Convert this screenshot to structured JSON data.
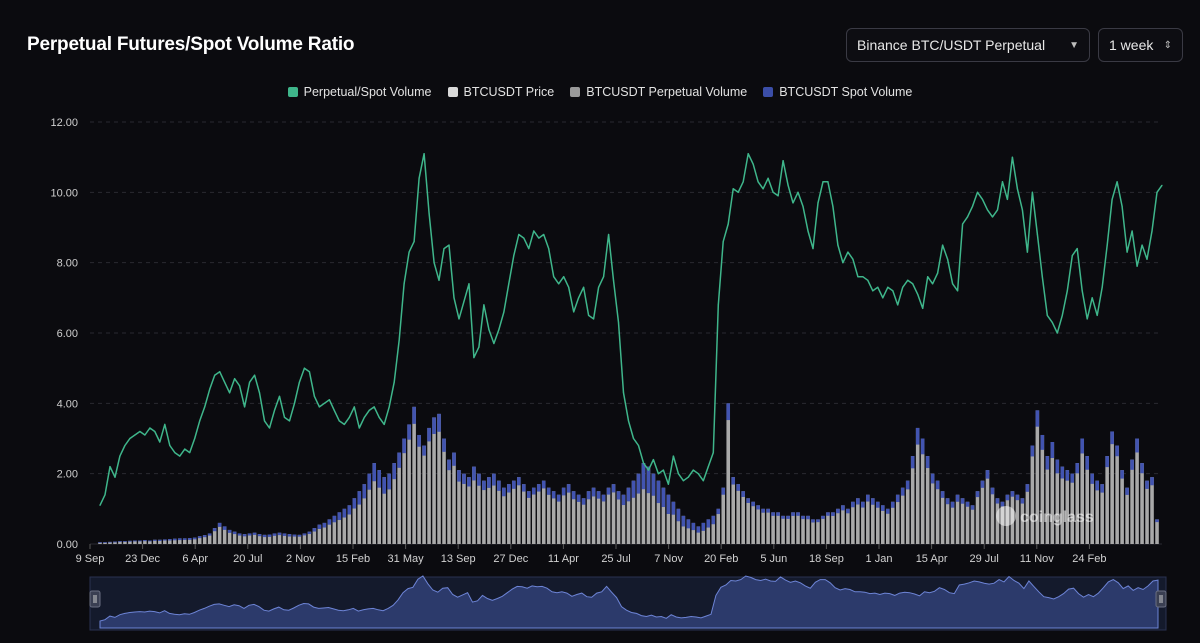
{
  "header": {
    "title": "Perpetual Futures/Spot Volume Ratio",
    "pair_select": "Binance BTC/USDT Perpetual",
    "period_select": "1 week"
  },
  "legend": [
    {
      "label": "Perpetual/Spot Volume",
      "color": "#3fb68b"
    },
    {
      "label": "BTCUSDT Price",
      "color": "#d9d9d9"
    },
    {
      "label": "BTCUSDT Perpetual Volume",
      "color": "#9a9a9a"
    },
    {
      "label": "BTCUSDT Spot Volume",
      "color": "#3b4ea8"
    }
  ],
  "watermark": "coinglass",
  "chart_data": {
    "type": "line",
    "title": "Perpetual Futures/Spot Volume Ratio",
    "ylim": [
      0,
      12
    ],
    "yticks": [
      "0.00",
      "2.00",
      "4.00",
      "6.00",
      "8.00",
      "10.00",
      "12.00"
    ],
    "xticks": [
      "9 Sep",
      "23 Dec",
      "6 Apr",
      "20 Jul",
      "2 Nov",
      "15 Feb",
      "31 May",
      "13 Sep",
      "27 Dec",
      "11 Apr",
      "25 Jul",
      "7 Nov",
      "20 Feb",
      "5 Jun",
      "18 Sep",
      "1 Jan",
      "15 Apr",
      "29 Jul",
      "11 Nov",
      "24 Feb"
    ],
    "series": [
      {
        "name": "Perpetual/Spot Volume",
        "values": [
          1.1,
          1.4,
          2.2,
          1.9,
          2.5,
          2.8,
          3.0,
          3.1,
          3.2,
          3.1,
          3.3,
          3.2,
          2.9,
          3.4,
          2.8,
          2.6,
          2.5,
          2.7,
          2.6,
          3.0,
          3.5,
          3.9,
          4.4,
          4.8,
          4.9,
          4.6,
          4.3,
          4.7,
          4.5,
          3.9,
          4.6,
          4.8,
          4.3,
          3.5,
          3.3,
          3.8,
          4.2,
          3.6,
          3.5,
          4.0,
          4.6,
          5.0,
          4.9,
          4.2,
          3.9,
          4.0,
          4.1,
          3.8,
          3.5,
          3.4,
          3.6,
          3.9,
          3.3,
          3.6,
          3.8,
          3.9,
          3.6,
          3.4,
          3.9,
          4.6,
          5.8,
          7.4,
          8.3,
          8.6,
          10.4,
          11.1,
          9.4,
          8.0,
          7.5,
          8.4,
          8.5,
          7.0,
          6.4,
          6.9,
          7.4,
          5.3,
          5.6,
          6.8,
          6.1,
          5.7,
          6.1,
          6.6,
          7.4,
          8.2,
          8.8,
          8.7,
          8.4,
          8.9,
          8.7,
          8.8,
          8.4,
          7.6,
          7.4,
          7.6,
          7.3,
          6.6,
          7.0,
          7.3,
          6.5,
          6.4,
          7.3,
          7.6,
          8.8,
          7.5,
          6.3,
          4.3,
          3.5,
          3.0,
          2.8,
          2.3,
          2.1,
          2.4,
          2.0,
          2.1,
          1.7,
          2.5,
          2.0,
          1.8,
          1.9,
          2.1,
          2.0,
          1.8,
          2.2,
          2.6,
          6.8,
          8.6,
          9.1,
          10.1,
          10.0,
          10.3,
          11.1,
          10.8,
          10.3,
          10.1,
          10.4,
          10.0,
          9.9,
          10.9,
          10.2,
          9.7,
          10.0,
          9.6,
          8.9,
          8.4,
          9.7,
          10.3,
          10.3,
          9.6,
          8.5,
          8.0,
          8.3,
          8.1,
          7.6,
          7.6,
          7.5,
          7.2,
          7.3,
          7.0,
          7.3,
          7.2,
          6.8,
          7.3,
          7.5,
          7.4,
          7.1,
          6.7,
          7.6,
          7.4,
          7.7,
          8.5,
          8.1,
          7.4,
          7.2,
          9.1,
          9.3,
          9.6,
          10.0,
          9.8,
          9.5,
          9.3,
          9.5,
          10.3,
          9.8,
          11.0,
          10.1,
          9.5,
          8.3,
          10.0,
          8.8,
          7.6,
          6.5,
          6.3,
          6.0,
          6.5,
          7.2,
          8.2,
          8.4,
          7.2,
          6.4,
          7.0,
          6.5,
          7.3,
          8.5,
          9.8,
          10.3,
          9.6,
          8.3,
          8.9,
          7.9,
          8.5,
          8.1,
          8.9,
          10.0,
          10.2
        ]
      },
      {
        "name": "BTCUSDT Spot Volume (stacked total)",
        "values": [
          0.05,
          0.05,
          0.06,
          0.07,
          0.08,
          0.08,
          0.09,
          0.1,
          0.1,
          0.11,
          0.1,
          0.12,
          0.12,
          0.13,
          0.14,
          0.15,
          0.16,
          0.16,
          0.17,
          0.18,
          0.22,
          0.25,
          0.3,
          0.45,
          0.6,
          0.5,
          0.4,
          0.35,
          0.3,
          0.28,
          0.3,
          0.32,
          0.28,
          0.26,
          0.27,
          0.3,
          0.32,
          0.3,
          0.28,
          0.27,
          0.26,
          0.3,
          0.35,
          0.45,
          0.55,
          0.6,
          0.7,
          0.8,
          0.9,
          1.0,
          1.1,
          1.3,
          1.5,
          1.7,
          2.0,
          2.3,
          2.1,
          1.9,
          2.0,
          2.3,
          2.6,
          3.0,
          3.4,
          3.9,
          3.1,
          2.8,
          3.3,
          3.6,
          3.7,
          3.0,
          2.4,
          2.6,
          2.1,
          2.0,
          1.9,
          2.2,
          2.0,
          1.8,
          1.9,
          2.0,
          1.8,
          1.6,
          1.7,
          1.8,
          1.9,
          1.7,
          1.5,
          1.6,
          1.7,
          1.8,
          1.6,
          1.5,
          1.4,
          1.6,
          1.7,
          1.5,
          1.4,
          1.3,
          1.5,
          1.6,
          1.5,
          1.4,
          1.6,
          1.7,
          1.5,
          1.4,
          1.6,
          1.8,
          2.0,
          2.3,
          2.2,
          2.0,
          1.8,
          1.6,
          1.4,
          1.2,
          1.0,
          0.8,
          0.7,
          0.6,
          0.5,
          0.6,
          0.7,
          0.8,
          1.0,
          1.6,
          4.0,
          1.9,
          1.7,
          1.5,
          1.3,
          1.2,
          1.1,
          1.0,
          1.0,
          0.9,
          0.9,
          0.8,
          0.8,
          0.9,
          0.9,
          0.8,
          0.8,
          0.7,
          0.7,
          0.8,
          0.9,
          0.9,
          1.0,
          1.1,
          1.0,
          1.2,
          1.3,
          1.2,
          1.4,
          1.3,
          1.2,
          1.1,
          1.0,
          1.2,
          1.4,
          1.6,
          1.8,
          2.5,
          3.3,
          3.0,
          2.5,
          2.0,
          1.8,
          1.5,
          1.3,
          1.2,
          1.4,
          1.3,
          1.2,
          1.1,
          1.5,
          1.8,
          2.1,
          1.6,
          1.3,
          1.2,
          1.4,
          1.5,
          1.4,
          1.3,
          1.7,
          2.8,
          3.8,
          3.1,
          2.5,
          2.9,
          2.4,
          2.2,
          2.1,
          2.0,
          2.3,
          3.0,
          2.5,
          2.0,
          1.8,
          1.7,
          2.5,
          3.2,
          2.8,
          2.1,
          1.6,
          2.4,
          3.0,
          2.3,
          1.8,
          1.9,
          0.7
        ]
      }
    ]
  }
}
